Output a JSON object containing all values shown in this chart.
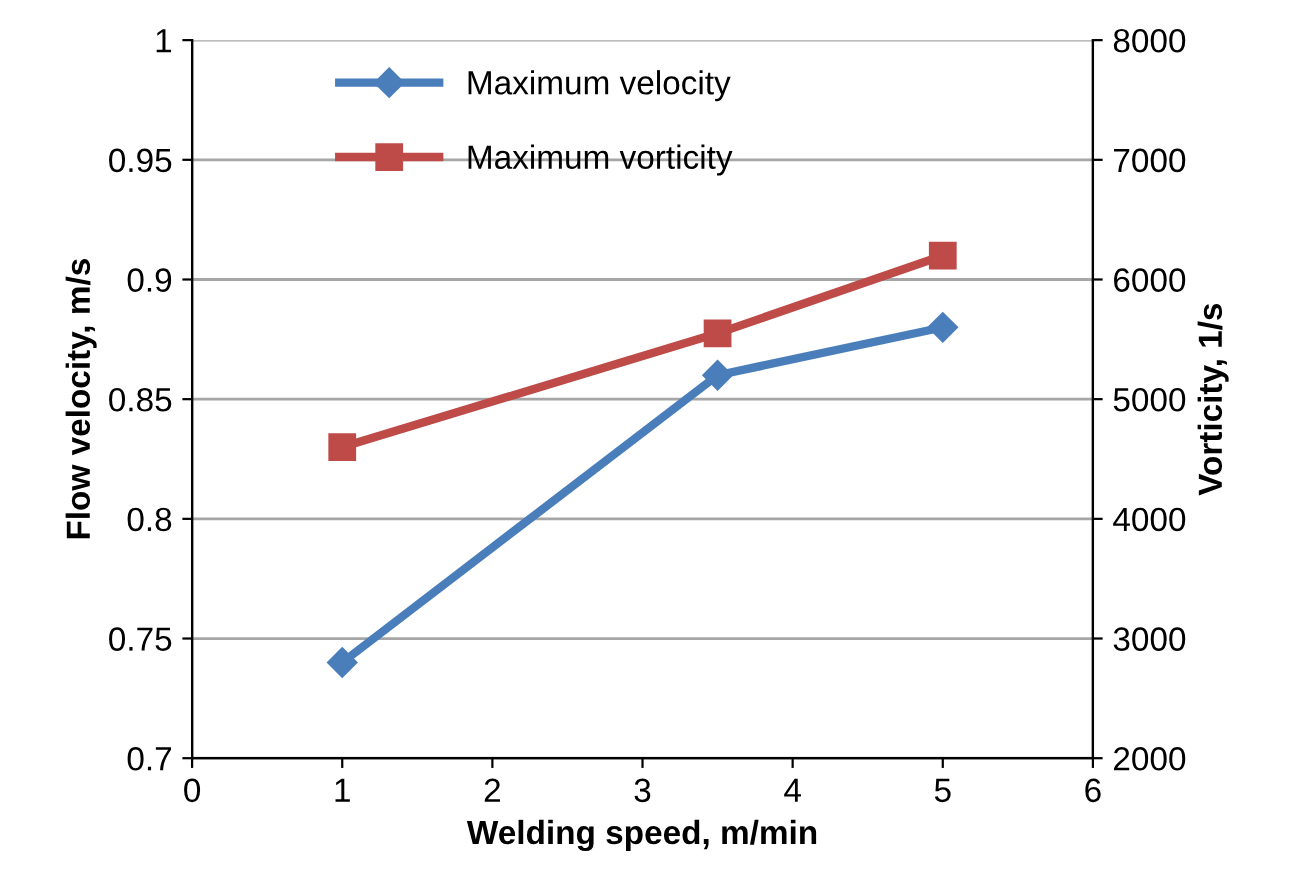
{
  "chart_data": {
    "type": "line",
    "xlabel": "Welding speed, m/min",
    "ylabel": "Flow velocity, m/s",
    "y2label": "Vorticity, 1/s",
    "x": [
      1,
      3.5,
      5
    ],
    "series": [
      {
        "name": "Maximum velocity",
        "color": "#4a7ebb",
        "marker": "diamond",
        "values": [
          0.74,
          0.86,
          0.88
        ]
      },
      {
        "name": "Maximum vorticity",
        "color": "#be4b48",
        "marker": "square",
        "axis": "y2",
        "values": [
          4600,
          5550,
          6200
        ]
      }
    ],
    "xlim": [
      0,
      6
    ],
    "xticks": [
      0,
      1,
      2,
      3,
      4,
      5,
      6
    ],
    "ylim": [
      0.7,
      1
    ],
    "yticks": [
      0.7,
      0.75,
      0.8,
      0.85,
      0.9,
      0.95,
      1
    ],
    "y2lim": [
      2000,
      8000
    ],
    "y2ticks": [
      2000,
      3000,
      4000,
      5000,
      6000,
      7000,
      8000
    ],
    "grid": "y",
    "legend": "top left",
    "line_style": "solid"
  }
}
